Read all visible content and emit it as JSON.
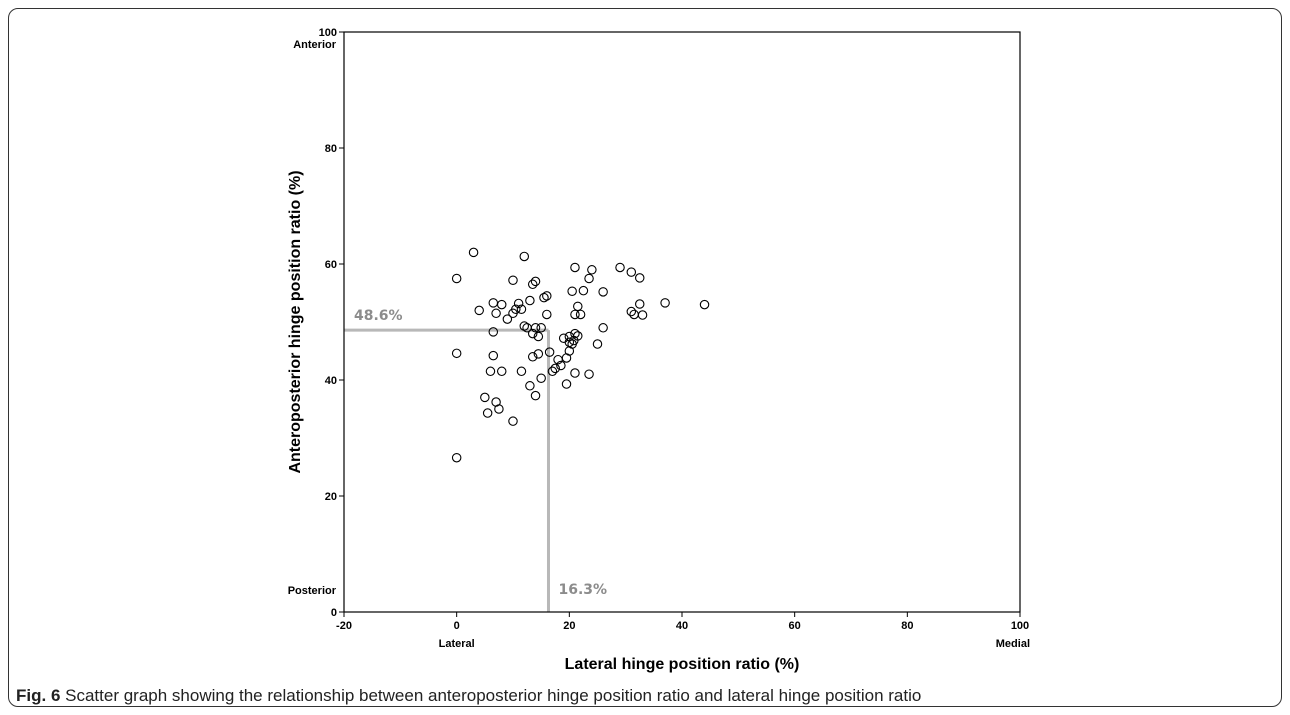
{
  "chart_data": {
    "type": "scatter",
    "xlabel": "Lateral hinge position ratio (%)",
    "ylabel": "Anteroposterior hinge position ratio (%)",
    "xlim": [
      -20,
      100
    ],
    "ylim": [
      0,
      100
    ],
    "x_ticks": [
      "-20",
      "0",
      "20",
      "40",
      "60",
      "80",
      "100"
    ],
    "y_ticks": [
      "0",
      "20",
      "40",
      "60",
      "80",
      "100"
    ],
    "x_direction_labels": {
      "low": "Lateral",
      "high": "Medial"
    },
    "y_direction_labels": {
      "low": "Posterior",
      "high": "Anterior"
    },
    "marker": "open-circle",
    "points": [
      [
        3,
        62
      ],
      [
        12,
        61.3
      ],
      [
        0,
        57.5
      ],
      [
        10,
        57.2
      ],
      [
        14,
        57
      ],
      [
        13.5,
        56.5
      ],
      [
        8,
        53
      ],
      [
        6.5,
        53.3
      ],
      [
        11,
        53.2
      ],
      [
        13,
        53.7
      ],
      [
        16,
        54.5
      ],
      [
        15.5,
        54.2
      ],
      [
        4,
        52
      ],
      [
        7,
        51.5
      ],
      [
        10.5,
        52.2
      ],
      [
        11.5,
        52.2
      ],
      [
        9,
        50.5
      ],
      [
        10,
        51.5
      ],
      [
        14,
        49
      ],
      [
        15,
        49
      ],
      [
        12,
        49.3
      ],
      [
        12.5,
        49
      ],
      [
        13.5,
        48
      ],
      [
        14.5,
        47.5
      ],
      [
        6.5,
        48.3
      ],
      [
        16,
        51.3
      ],
      [
        0,
        44.6
      ],
      [
        6.5,
        44.2
      ],
      [
        13.5,
        44
      ],
      [
        14.5,
        44.5
      ],
      [
        16.5,
        44.8
      ],
      [
        18,
        43.5
      ],
      [
        19.5,
        43.8
      ],
      [
        17.5,
        42
      ],
      [
        18.5,
        42.5
      ],
      [
        17,
        41.5
      ],
      [
        6,
        41.5
      ],
      [
        8,
        41.5
      ],
      [
        11.5,
        41.5
      ],
      [
        15,
        40.3
      ],
      [
        13,
        39
      ],
      [
        19.5,
        39.3
      ],
      [
        5,
        37
      ],
      [
        7,
        36.2
      ],
      [
        14,
        37.3
      ],
      [
        5.5,
        34.3
      ],
      [
        7.5,
        35
      ],
      [
        10,
        32.9
      ],
      [
        0,
        26.6
      ],
      [
        21,
        59.4
      ],
      [
        24,
        59
      ],
      [
        23.5,
        57.5
      ],
      [
        20.5,
        55.3
      ],
      [
        22.5,
        55.4
      ],
      [
        26,
        55.2
      ],
      [
        21.5,
        52.7
      ],
      [
        21,
        51.3
      ],
      [
        22,
        51.3
      ],
      [
        26,
        49
      ],
      [
        19,
        47.2
      ],
      [
        20,
        47.5
      ],
      [
        21,
        48
      ],
      [
        21.5,
        47.6
      ],
      [
        20,
        46.5
      ],
      [
        20.5,
        46.2
      ],
      [
        20.8,
        46.8
      ],
      [
        20,
        45
      ],
      [
        25,
        46.2
      ],
      [
        21,
        41.2
      ],
      [
        23.5,
        41
      ],
      [
        29,
        59.4
      ],
      [
        31,
        58.6
      ],
      [
        32.5,
        57.6
      ],
      [
        31,
        51.8
      ],
      [
        31.5,
        51.3
      ],
      [
        32.5,
        53.1
      ],
      [
        33,
        51.2
      ],
      [
        37,
        53.3
      ],
      [
        44,
        53
      ]
    ],
    "reference_lines": {
      "color": "#b8b8b8",
      "x": 16.3,
      "y": 48.6,
      "x_label": "16.3%",
      "y_label": "48.6%"
    }
  },
  "caption": {
    "fig_label": "Fig. 6",
    "text": " Scatter graph showing the relationship between anteroposterior hinge position ratio and lateral hinge position ratio"
  }
}
